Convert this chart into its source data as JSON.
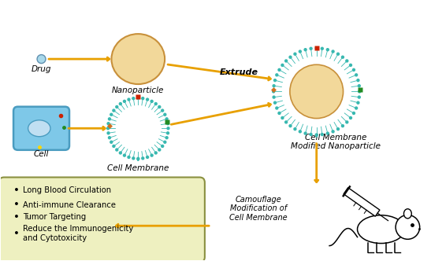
{
  "bg_color": "#ffffff",
  "arrow_color": "#E8A000",
  "text_color": "#000000",
  "cell_color": "#7EC8E8",
  "cell_outline": "#4A9CC0",
  "nanoparticle_fill": "#F2D89A",
  "nanoparticle_outline": "#C8903A",
  "membrane_color": "#38B8B0",
  "box_fill": "#EEF0C0",
  "box_outline": "#8A9040",
  "drug_color": "#A8D8EA",
  "tangled_color": "#3070C0",
  "red_marker": "#CC2200",
  "green_marker": "#228B22",
  "orange_marker": "#D07020",
  "teal_marker": "#38B8B0",
  "labels": {
    "drug": "Drug",
    "nanoparticle": "Nanoparticle",
    "cell": "Cell",
    "cell_membrane": "Cell Membrane",
    "extrude": "Extrude",
    "cell_membrane_modified": "Cell Membrane\nModified Nanoparticle",
    "camouflage": "Camouflage\nModification of\nCell Membrane",
    "bullet1": "Long Blood Circulation",
    "bullet2": "Anti-immune Clearance",
    "bullet3": "Tumor Targeting",
    "bullet4": "Reduce the Immunogenicity\nand Cytotoxicity"
  },
  "figsize": [
    5.47,
    3.32
  ],
  "dpi": 100
}
